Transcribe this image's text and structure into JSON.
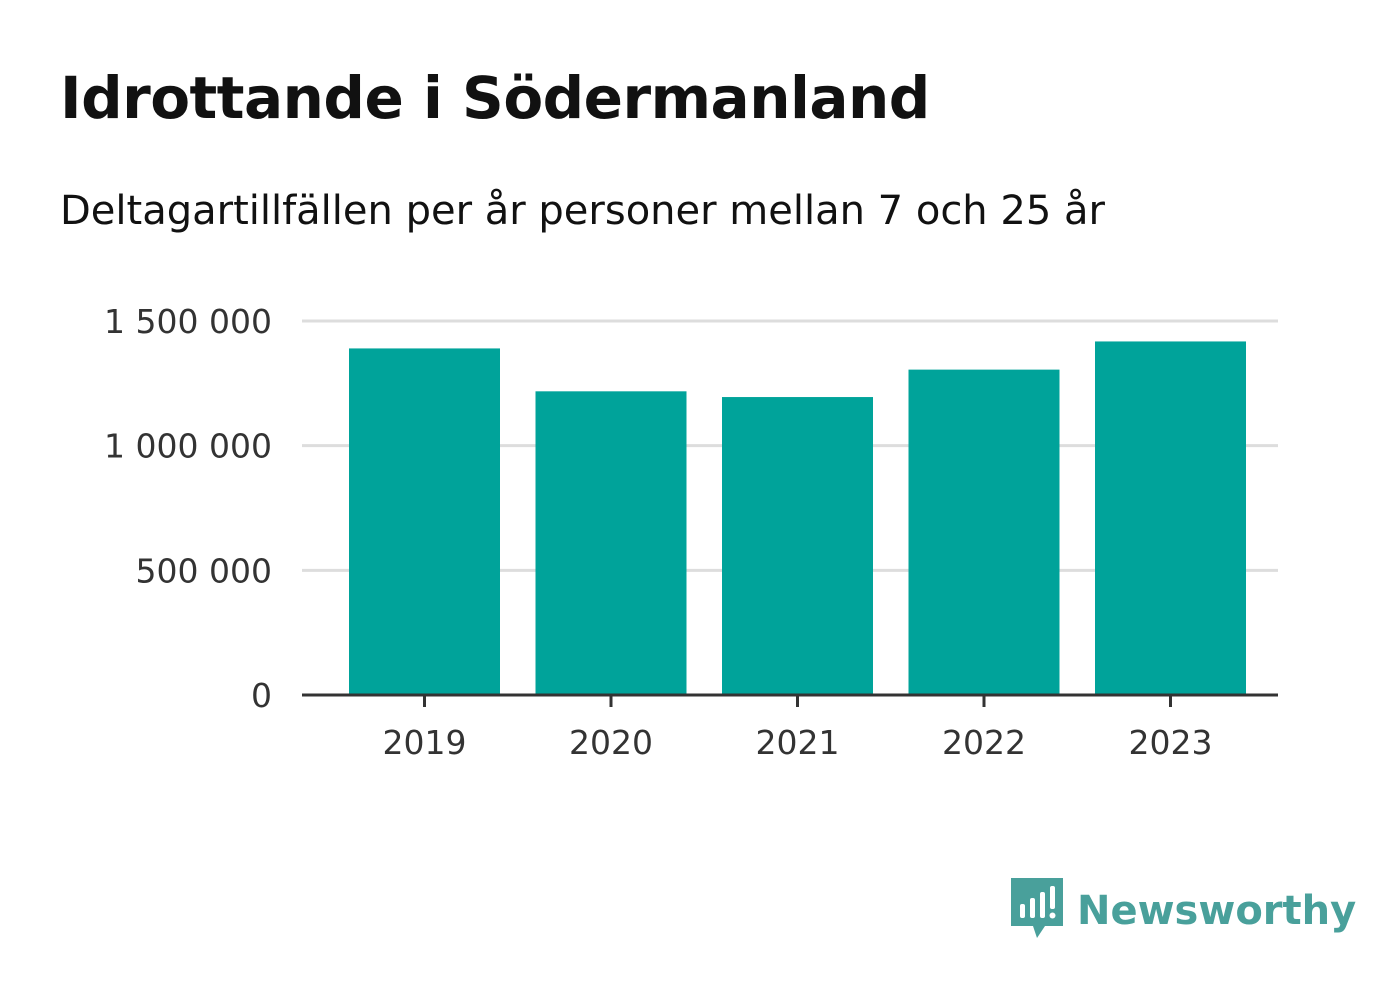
{
  "title": "Idrottande i Södermanland",
  "subtitle": "Deltagartillfällen per år personer mellan 7 och 25 år",
  "brand": {
    "name": "Newsworthy",
    "color": "#49a09b",
    "icon": "newsworthy-bar-chart-speech-bubble-icon"
  },
  "colors": {
    "bar": "#00a39a",
    "grid": "#dddddd",
    "axis": "#333333"
  },
  "chart_data": {
    "type": "bar",
    "categories": [
      "2019",
      "2020",
      "2021",
      "2022",
      "2023"
    ],
    "values": [
      1390000,
      1218000,
      1195000,
      1305000,
      1418000
    ],
    "ylim": [
      0,
      1500000
    ],
    "yticks": [
      0,
      500000,
      1000000,
      1500000
    ],
    "ytick_labels": [
      "0",
      "500 000",
      "1 000 000",
      "1 500 000"
    ],
    "grid": true,
    "legend": "none"
  }
}
